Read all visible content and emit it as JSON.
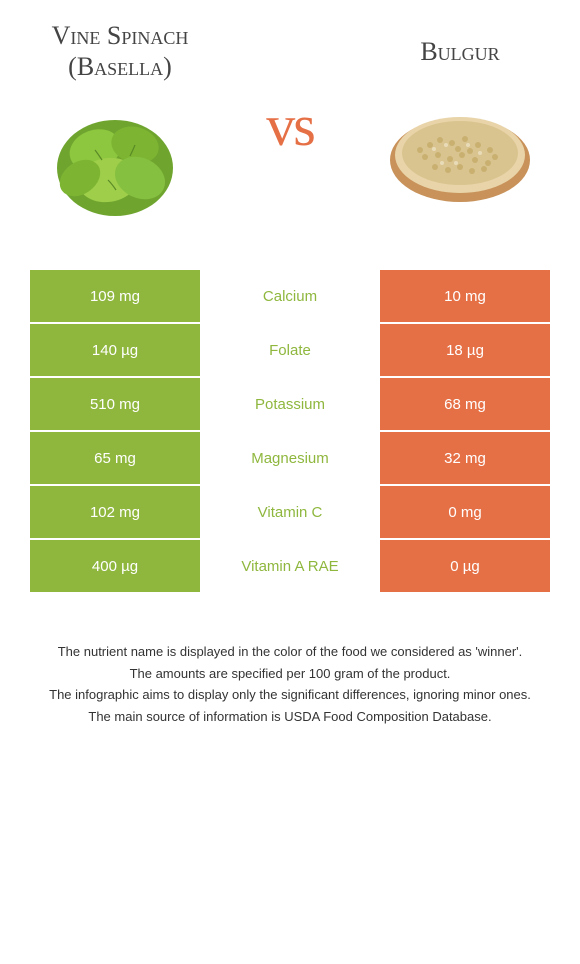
{
  "colors": {
    "left": "#8fb73e",
    "right": "#e67046",
    "mid_text_winner_left": "#8fb73e",
    "mid_text_winner_right": "#e67046"
  },
  "food_left": {
    "title": "Vine Spinach (Basella)"
  },
  "food_right": {
    "title": "Bulgur"
  },
  "vs": "vs",
  "rows": [
    {
      "left": "109 mg",
      "mid": "Calcium",
      "right": "10 mg",
      "winner": "left"
    },
    {
      "left": "140 µg",
      "mid": "Folate",
      "right": "18 µg",
      "winner": "left"
    },
    {
      "left": "510 mg",
      "mid": "Potassium",
      "right": "68 mg",
      "winner": "left"
    },
    {
      "left": "65 mg",
      "mid": "Magnesium",
      "right": "32 mg",
      "winner": "left"
    },
    {
      "left": "102 mg",
      "mid": "Vitamin C",
      "right": "0 mg",
      "winner": "left"
    },
    {
      "left": "400 µg",
      "mid": "Vitamin A RAE",
      "right": "0 µg",
      "winner": "left"
    }
  ],
  "footer": [
    "The nutrient name is displayed in the color of the food we considered as 'winner'.",
    "The amounts are specified per 100 gram of the product.",
    "The infographic aims to display only the significant differences, ignoring minor ones.",
    "The main source of information is USDA Food Composition Database."
  ]
}
